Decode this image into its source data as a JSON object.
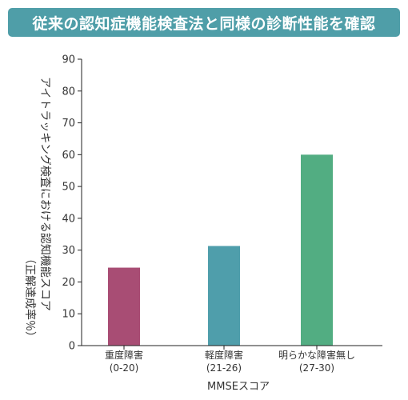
{
  "banner": {
    "title": "従来の認知症機能検査法と同様の診断性能を確認",
    "background_color": "#4f9ea8"
  },
  "chart_data": {
    "type": "bar",
    "title": "従来の認知症機能検査法と同様の診断性能を確認",
    "categories": [
      [
        "重度障害",
        "(0-20)"
      ],
      [
        "軽度障害",
        "(21-26)"
      ],
      [
        "明らかな障害無し",
        "(27-30)"
      ]
    ],
    "values": [
      24.5,
      31.3,
      60
    ],
    "bar_colors": [
      "#a84d74",
      "#4f9eab",
      "#52ad82"
    ],
    "xlabel": "MMSEスコア",
    "ylabel_lines": [
      "アイトラッキング検査における認知機能スコア",
      "（正解達成率％）"
    ],
    "ylim": [
      0,
      90
    ],
    "yticks": [
      0,
      10,
      20,
      30,
      40,
      50,
      60,
      70,
      80,
      90
    ],
    "grid": false,
    "legend": "none"
  }
}
